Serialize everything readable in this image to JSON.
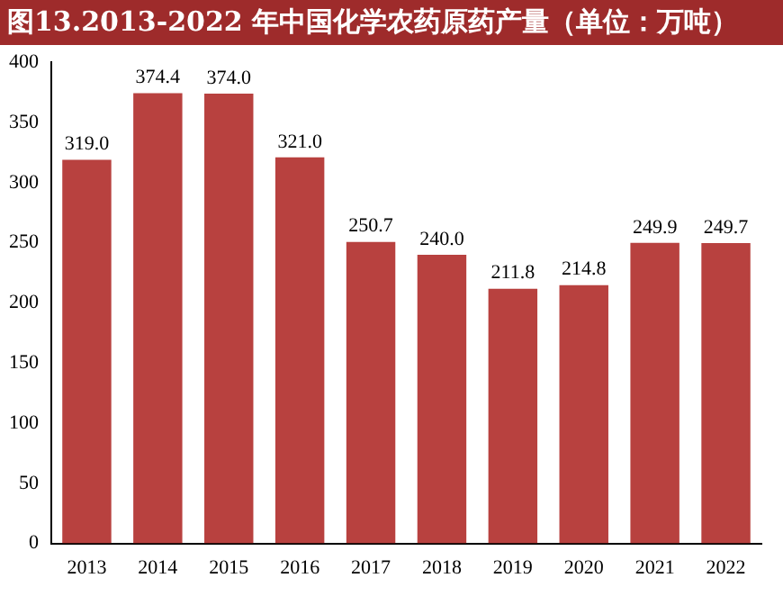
{
  "chart_data": {
    "type": "bar",
    "title": "图13.2013-2022 年中国化学农药原药产量（单位：万吨）",
    "categories": [
      "2013",
      "2014",
      "2015",
      "2016",
      "2017",
      "2018",
      "2019",
      "2020",
      "2021",
      "2022"
    ],
    "values": [
      319.0,
      374.4,
      374.0,
      321.0,
      250.7,
      240.0,
      211.8,
      214.8,
      249.9,
      249.7
    ],
    "value_labels": [
      "319.0",
      "374.4",
      "374.0",
      "321.0",
      "250.7",
      "240.0",
      "211.8",
      "214.8",
      "249.9",
      "249.7"
    ],
    "color": "#b8413f",
    "ylim": [
      0,
      400
    ],
    "yticks": [
      0,
      50,
      100,
      150,
      200,
      250,
      300,
      350,
      400
    ],
    "grid": false,
    "legend": false
  }
}
